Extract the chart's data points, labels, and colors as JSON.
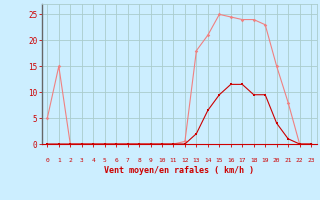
{
  "x": [
    0,
    1,
    2,
    3,
    4,
    5,
    6,
    7,
    8,
    9,
    10,
    11,
    12,
    13,
    14,
    15,
    16,
    17,
    18,
    19,
    20,
    21,
    22,
    23
  ],
  "y_rafales": [
    5,
    15,
    0,
    0,
    0,
    0,
    0,
    0,
    0,
    0,
    0,
    0,
    0.5,
    18,
    21,
    25,
    24.5,
    24,
    24,
    23,
    15,
    8,
    0,
    0
  ],
  "y_moyen": [
    0,
    0,
    0,
    0,
    0,
    0,
    0,
    0,
    0,
    0,
    0,
    0,
    0,
    2,
    6.5,
    9.5,
    11.5,
    11.5,
    9.5,
    9.5,
    4,
    1,
    0,
    0
  ],
  "color_rafales": "#f08080",
  "color_moyen": "#cc0000",
  "bg_color": "#cceeff",
  "grid_color": "#aacccc",
  "xlabel": "Vent moyen/en rafales ( km/h )",
  "xlabel_color": "#cc0000",
  "tick_color": "#cc0000",
  "ylim": [
    0,
    27
  ],
  "xlim": [
    -0.5,
    23.5
  ],
  "yticks": [
    0,
    5,
    10,
    15,
    20,
    25
  ],
  "xticks": [
    0,
    1,
    2,
    3,
    4,
    5,
    6,
    7,
    8,
    9,
    10,
    11,
    12,
    13,
    14,
    15,
    16,
    17,
    18,
    19,
    20,
    21,
    22,
    23
  ]
}
